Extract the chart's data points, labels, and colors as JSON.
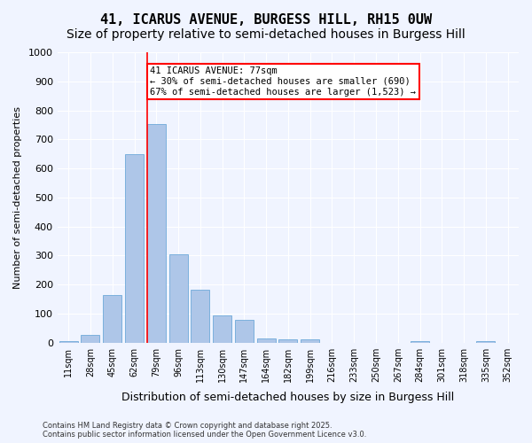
{
  "title": "41, ICARUS AVENUE, BURGESS HILL, RH15 0UW",
  "subtitle": "Size of property relative to semi-detached houses in Burgess Hill",
  "xlabel": "Distribution of semi-detached houses by size in Burgess Hill",
  "ylabel": "Number of semi-detached properties",
  "categories": [
    "11sqm",
    "28sqm",
    "45sqm",
    "62sqm",
    "79sqm",
    "96sqm",
    "113sqm",
    "130sqm",
    "147sqm",
    "164sqm",
    "182sqm",
    "199sqm",
    "216sqm",
    "233sqm",
    "250sqm",
    "267sqm",
    "284sqm",
    "301sqm",
    "318sqm",
    "335sqm",
    "352sqm"
  ],
  "values": [
    5,
    25,
    165,
    648,
    752,
    305,
    182,
    93,
    78,
    15,
    10,
    10,
    0,
    0,
    0,
    0,
    5,
    0,
    0,
    5
  ],
  "bar_color": "#aec6e8",
  "bar_edge_color": "#5a9fd4",
  "property_line_x": 4,
  "property_sqm": 77,
  "annotation_text": "41 ICARUS AVENUE: 77sqm\n← 30% of semi-detached houses are smaller (690)\n67% of semi-detached houses are larger (1,523) →",
  "annotation_box_color": "white",
  "annotation_box_edge": "red",
  "ylim": [
    0,
    1000
  ],
  "yticks": [
    0,
    100,
    200,
    300,
    400,
    500,
    600,
    700,
    800,
    900,
    1000
  ],
  "background_color": "#f0f4ff",
  "grid_color": "white",
  "footer": "Contains HM Land Registry data © Crown copyright and database right 2025.\nContains public sector information licensed under the Open Government Licence v3.0.",
  "title_fontsize": 11,
  "subtitle_fontsize": 10
}
